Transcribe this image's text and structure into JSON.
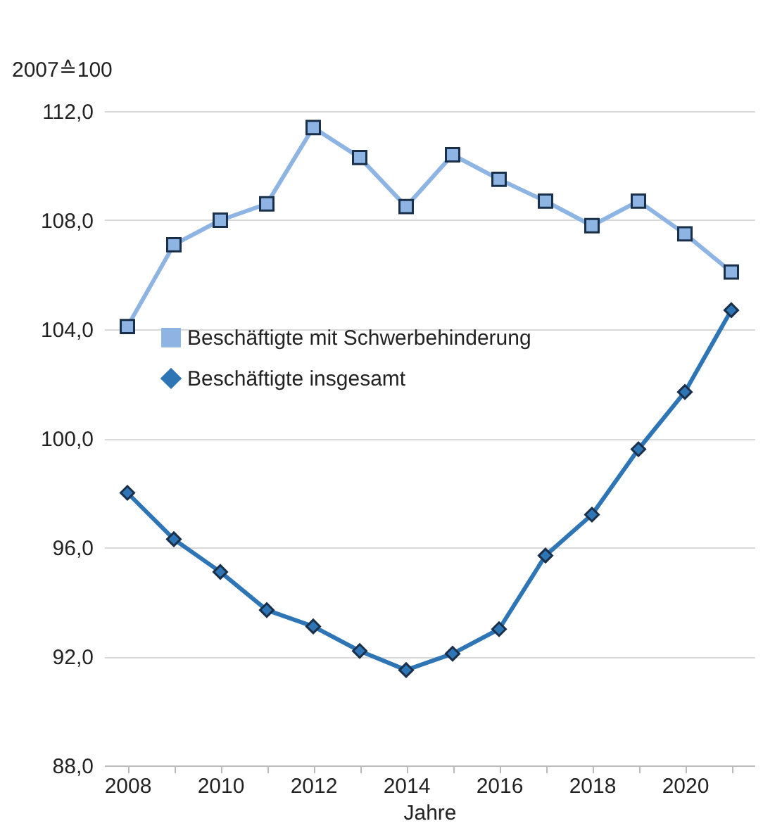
{
  "chart_data": {
    "type": "line",
    "ylabel": "2007≙100",
    "xlabel": "Jahre",
    "categories": [
      "2008",
      null,
      "2010",
      null,
      "2012",
      null,
      "2014",
      null,
      "2016",
      null,
      "2018",
      null,
      "2020",
      null
    ],
    "series": [
      {
        "name": "Beschäftigte mit Schwerbehinderung",
        "color": "#8db4e2",
        "marker": "square",
        "values": [
          104.1,
          107.1,
          108.0,
          108.6,
          111.4,
          110.3,
          108.5,
          110.4,
          109.5,
          108.7,
          107.8,
          108.7,
          107.5,
          106.1
        ]
      },
      {
        "name": "Beschäftigte insgesamt",
        "color": "#2e75b6",
        "marker": "diamond",
        "values": [
          98.0,
          96.3,
          95.1,
          93.7,
          93.1,
          92.2,
          91.5,
          92.1,
          93.0,
          95.7,
          97.2,
          99.6,
          101.7,
          104.7
        ]
      }
    ],
    "ylim": [
      88,
      112
    ],
    "yticks": [
      {
        "value": 88,
        "label": "88,0"
      },
      {
        "value": 92,
        "label": "92,0"
      },
      {
        "value": 96,
        "label": "96,0"
      },
      {
        "value": 100,
        "label": "100,0"
      },
      {
        "value": 104,
        "label": "104,0"
      },
      {
        "value": 108,
        "label": "108,0"
      },
      {
        "value": 112,
        "label": "112,0"
      }
    ],
    "grid": "y",
    "legend": "left"
  }
}
